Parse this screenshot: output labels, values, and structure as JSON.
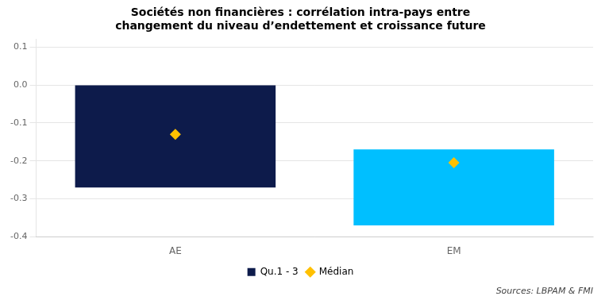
{
  "chart_data": {
    "type": "bar",
    "title": "Sociétés non financières : corrélation intra-pays entre\nchangement du niveau d’endettement et croissance future",
    "categories": [
      "AE",
      "EM"
    ],
    "series": [
      {
        "name": "Qu.1 - 3",
        "type": "bar",
        "values": [
          [
            0.0,
            -0.27
          ],
          [
            -0.17,
            -0.37
          ]
        ],
        "colors": [
          "#0d1b4b",
          "#00bfff"
        ]
      },
      {
        "name": "Médian",
        "type": "scatter",
        "marker": "diamond",
        "color": "#ffc000",
        "values": [
          -0.13,
          -0.205
        ]
      }
    ],
    "ylim": [
      -0.4,
      0.12
    ],
    "yticks": [
      0.1,
      {
        "value": 0.0,
        "label": "0.0"
      },
      -0.1,
      -0.2,
      -0.3,
      -0.4
    ],
    "grid": true,
    "legend": "bottom",
    "annotation": "Sources: LBPAM & FMI"
  }
}
